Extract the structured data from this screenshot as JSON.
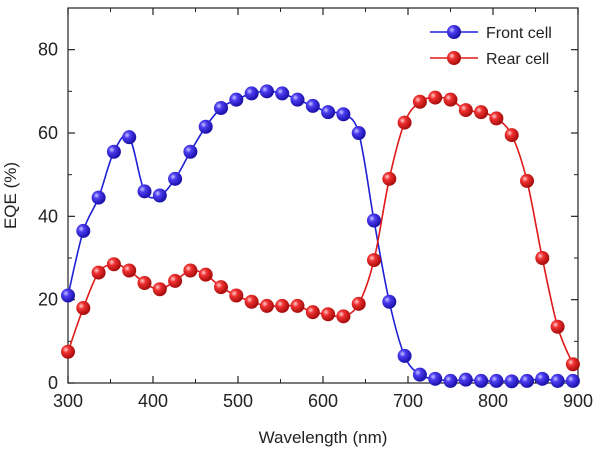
{
  "chart_data": {
    "type": "line",
    "title": "",
    "xlabel": "Wavelength (nm)",
    "ylabel": "EQE (%)",
    "xlim": [
      300,
      900
    ],
    "ylim": [
      0,
      90
    ],
    "x_ticks": [
      300,
      400,
      500,
      600,
      700,
      800,
      900
    ],
    "y_ticks": [
      0,
      20,
      40,
      60,
      80
    ],
    "grid": false,
    "legend_position": "top-right",
    "series": [
      {
        "name": "Front cell",
        "color": "#1f1fd6",
        "marker_color": "#2a20e0",
        "x": [
          300,
          318,
          336,
          354,
          372,
          390,
          408,
          426,
          444,
          462,
          480,
          498,
          516,
          534,
          552,
          570,
          588,
          606,
          624,
          642,
          660,
          678,
          696,
          714,
          732,
          750,
          768,
          786,
          804,
          822,
          840,
          858,
          876,
          894
        ],
        "values": [
          21,
          36.5,
          44.5,
          55.5,
          59,
          46,
          45,
          49,
          55.5,
          61.5,
          66,
          68,
          69.5,
          70,
          69.5,
          68,
          66.5,
          65,
          64.5,
          60,
          39,
          19.5,
          6.5,
          2,
          1,
          0.5,
          0.8,
          0.5,
          0.5,
          0.4,
          0.5,
          1,
          0.5,
          0.5
        ]
      },
      {
        "name": "Rear cell",
        "color": "#e01818",
        "marker_color": "#e52020",
        "x": [
          300,
          318,
          336,
          354,
          372,
          390,
          408,
          426,
          444,
          462,
          480,
          498,
          516,
          534,
          552,
          570,
          588,
          606,
          624,
          642,
          660,
          678,
          696,
          714,
          732,
          750,
          768,
          786,
          804,
          822,
          840,
          858,
          876,
          894
        ],
        "values": [
          7.5,
          18,
          26.5,
          28.5,
          27,
          24,
          22.5,
          24.5,
          27,
          26,
          23,
          21,
          19.5,
          18.5,
          18.5,
          18.5,
          17,
          16.5,
          16,
          19,
          29.5,
          49,
          62.5,
          67.5,
          68.5,
          68,
          65.5,
          65,
          63.5,
          59.5,
          48.5,
          30,
          13.5,
          4.5
        ]
      }
    ]
  }
}
